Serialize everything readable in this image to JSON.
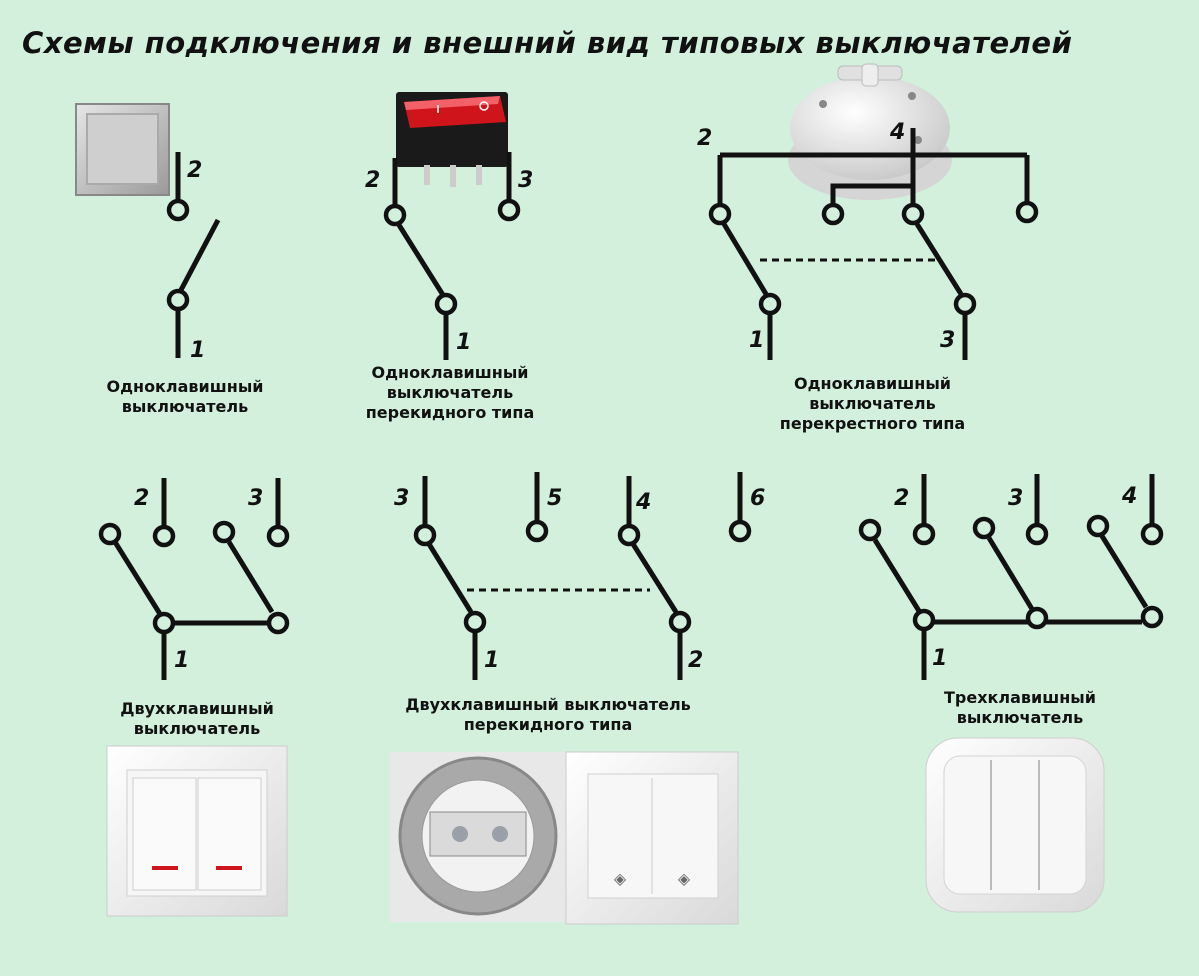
{
  "title": "Схемы подключения и внешний вид типовых выключателей",
  "diagrams": [
    {
      "caption": [
        "Одноклавишный",
        "выключатель"
      ],
      "labels": [
        "2",
        "1"
      ]
    },
    {
      "caption": [
        "Одноклавишный",
        "выключатель",
        "перекидного типа"
      ],
      "labels": [
        "2",
        "3",
        "1"
      ]
    },
    {
      "caption": [
        "Одноклавишный",
        "выключатель",
        "перекрестного типа"
      ],
      "labels": [
        "2",
        "4",
        "1",
        "3"
      ]
    },
    {
      "caption": [
        "Двухклавишный",
        "выключатель"
      ],
      "labels": [
        "2",
        "3",
        "1"
      ]
    },
    {
      "caption": [
        "Двухклавишный выключатель",
        "перекидного типа"
      ],
      "labels": [
        "3",
        "5",
        "4",
        "6",
        "1",
        "2"
      ]
    },
    {
      "caption": [
        "Трехклавишный",
        "выключатель"
      ],
      "labels": [
        "2",
        "3",
        "4",
        "1"
      ]
    }
  ],
  "colors": {
    "background": "#d2f0dc",
    "wire": "#111111",
    "rocker_red": "#d0141c"
  }
}
